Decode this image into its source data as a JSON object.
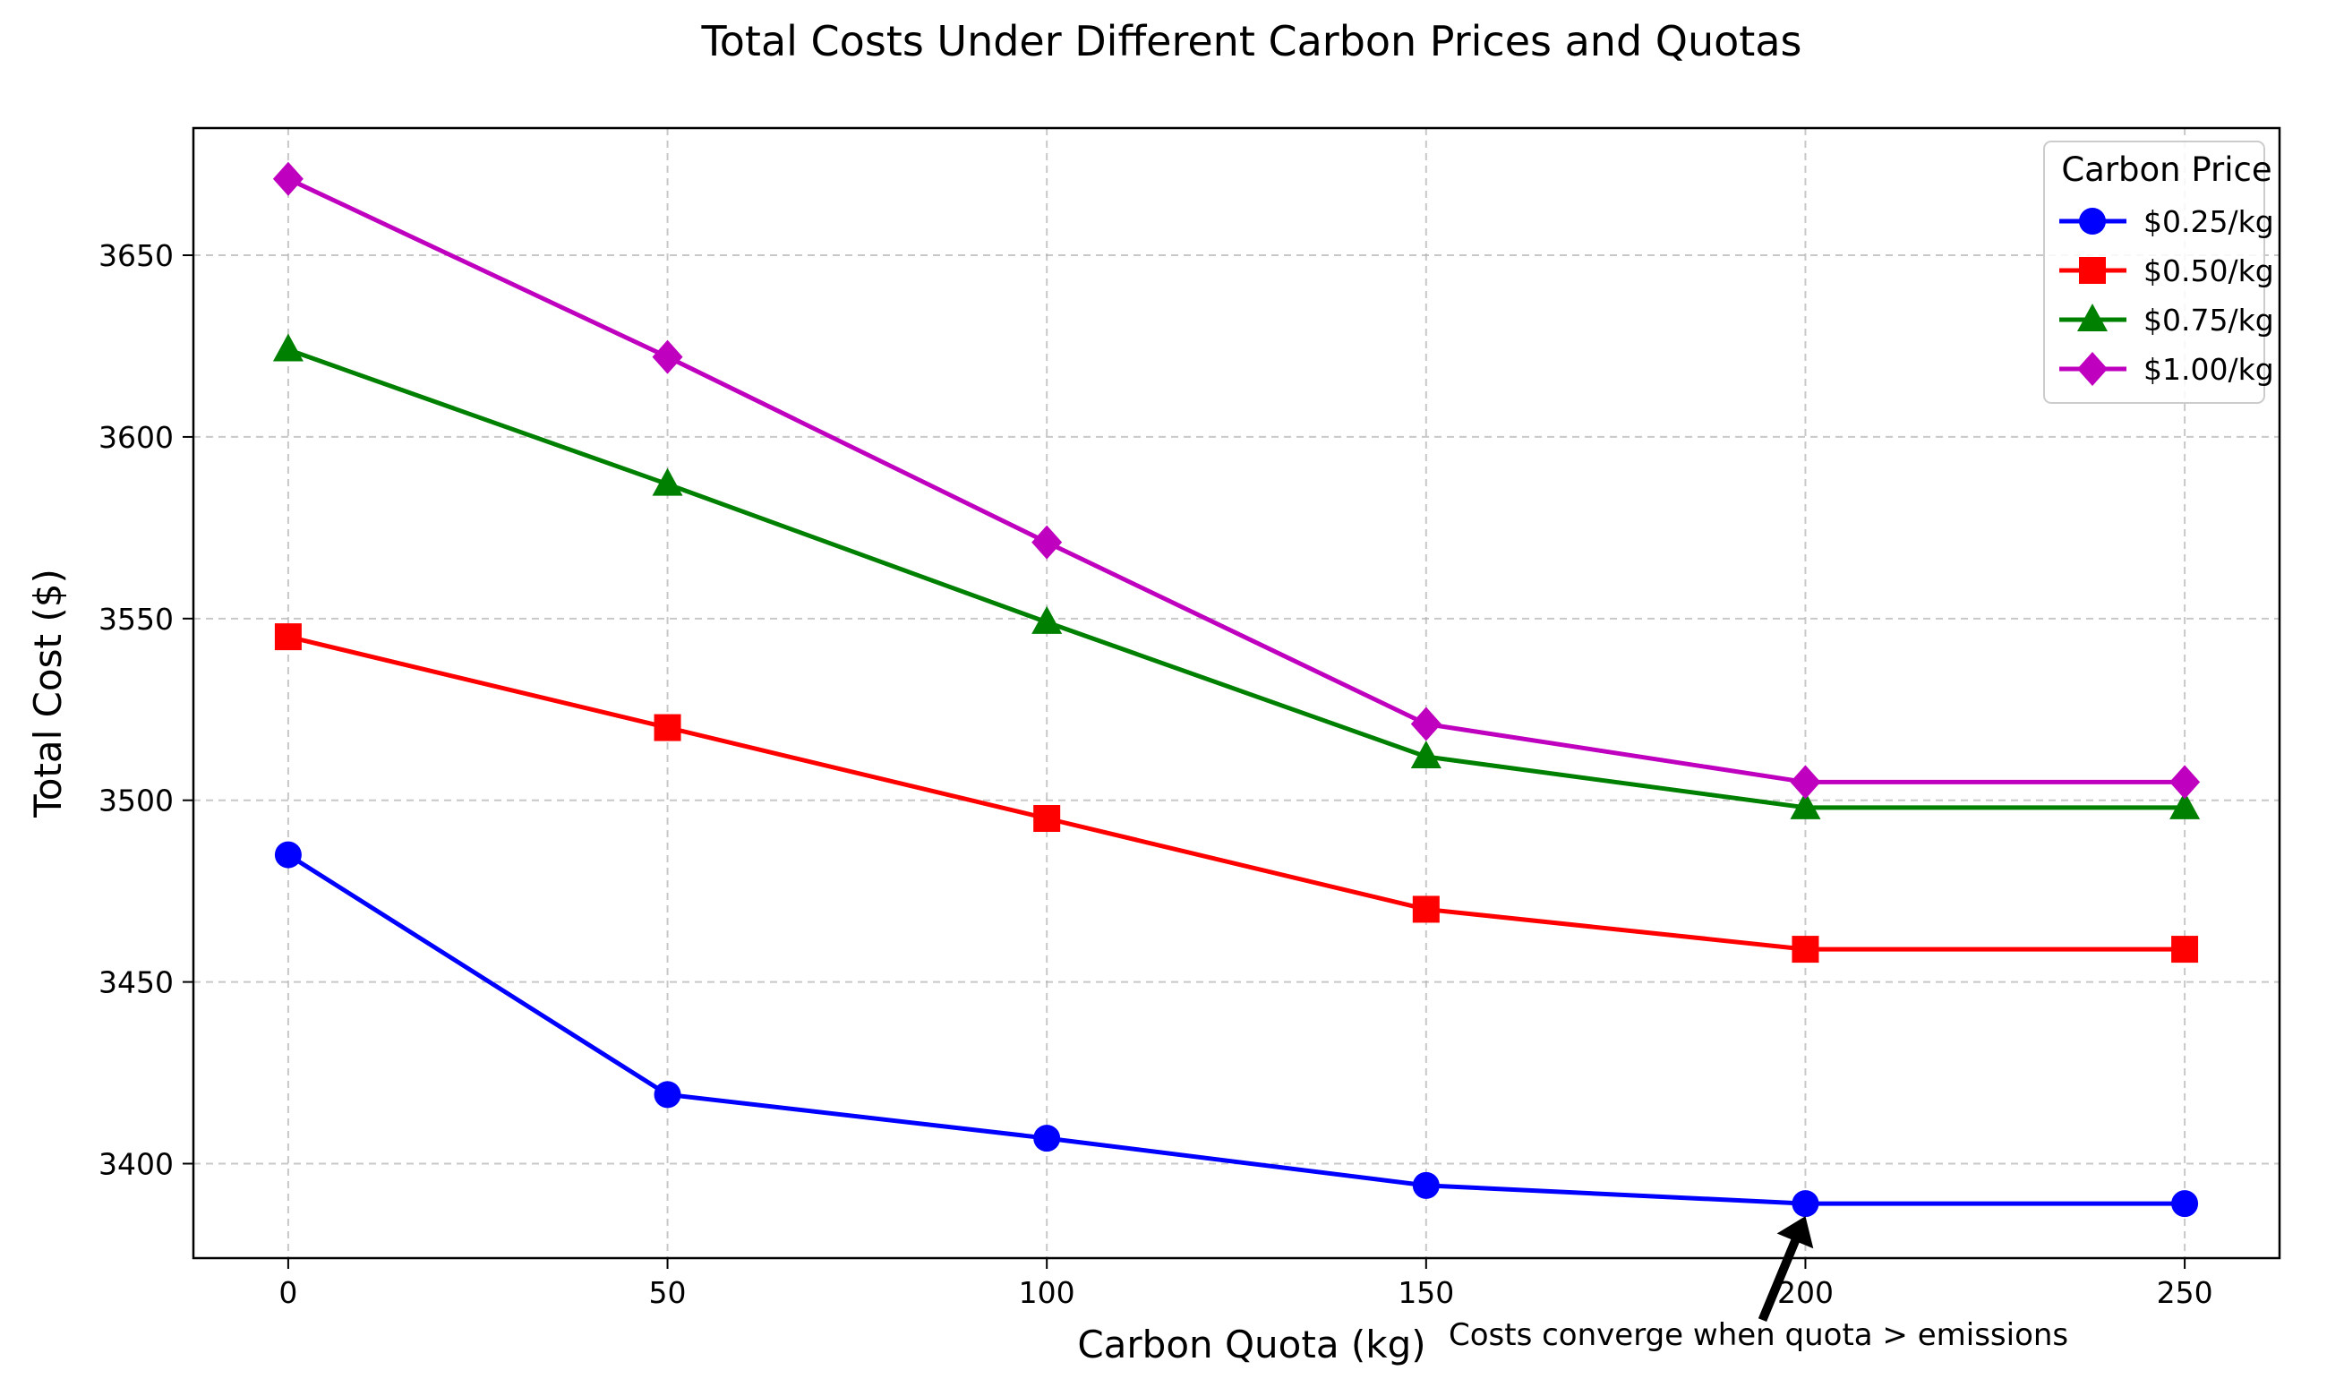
{
  "chart_data": {
    "type": "line",
    "title": "Total Costs Under Different Carbon Prices and Quotas",
    "xlabel": "Carbon Quota (kg)",
    "ylabel": "Total Cost ($)",
    "x": [
      0,
      50,
      100,
      150,
      200,
      250
    ],
    "xticks": [
      "0",
      "50",
      "100",
      "150",
      "200",
      "250"
    ],
    "yticks": [
      "3400",
      "3450",
      "3500",
      "3550",
      "3600",
      "3650"
    ],
    "xlim": [
      -12.5,
      262.5
    ],
    "ylim": [
      3374,
      3685
    ],
    "grid": true,
    "legend": {
      "title": "Carbon Price",
      "position": "top-right"
    },
    "series": [
      {
        "name": "$0.25/kg",
        "color": "#0000ff",
        "marker": "circle",
        "values": [
          3485,
          3419,
          3407,
          3394,
          3389,
          3389
        ]
      },
      {
        "name": "$0.50/kg",
        "color": "#ff0000",
        "marker": "square",
        "values": [
          3545,
          3520,
          3495,
          3470,
          3459,
          3459
        ]
      },
      {
        "name": "$0.75/kg",
        "color": "#008000",
        "marker": "triangle",
        "values": [
          3624,
          3587,
          3549,
          3512,
          3498,
          3498
        ]
      },
      {
        "name": "$1.00/kg",
        "color": "#bf00bf",
        "marker": "diamond",
        "values": [
          3671,
          3622,
          3571,
          3521,
          3505,
          3505
        ]
      }
    ],
    "annotation": {
      "text": "Costs converge when quota > emissions",
      "x": 200,
      "y": 3389
    }
  }
}
